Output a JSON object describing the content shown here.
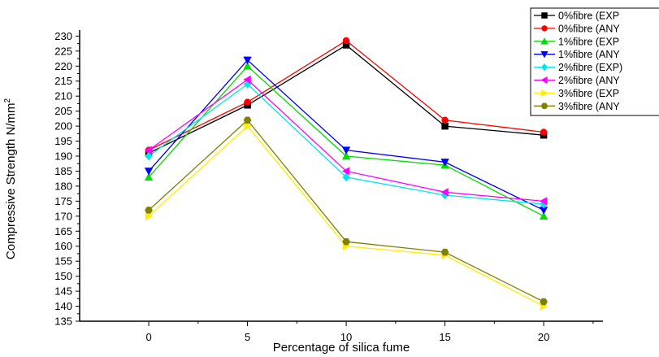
{
  "chart_data": {
    "type": "line",
    "xlabel": "Percentage of silica fume",
    "ylabel": "Compressive Strength N/mm",
    "ylabel_sup": "2",
    "x": [
      0,
      5,
      10,
      15,
      20
    ],
    "xlim": [
      -3.5,
      23
    ],
    "ylim": [
      135,
      232
    ],
    "yticks": [
      135,
      140,
      145,
      150,
      155,
      160,
      165,
      170,
      175,
      180,
      185,
      190,
      195,
      200,
      205,
      210,
      215,
      220,
      225,
      230
    ],
    "xticks": [
      0,
      5,
      10,
      15,
      20
    ],
    "grid": false,
    "legend_position": "top-right",
    "series": [
      {
        "name": "0%fibre (EXP",
        "color": "#000000",
        "marker": "square",
        "values": [
          191,
          207,
          227,
          200,
          197
        ]
      },
      {
        "name": "0%fibre (ANY",
        "color": "#ff0000",
        "marker": "circle",
        "values": [
          192,
          208,
          228.5,
          202,
          198
        ]
      },
      {
        "name": "1%fibre (EXP",
        "color": "#00dd00",
        "marker": "triangle-up",
        "values": [
          183,
          220,
          190,
          187,
          170
        ]
      },
      {
        "name": "1%fibre (ANY",
        "color": "#0000ff",
        "marker": "triangle-down",
        "values": [
          185,
          222,
          192,
          188,
          172
        ]
      },
      {
        "name": "2%fibre (EXP)",
        "color": "#00e5ee",
        "marker": "diamond",
        "values": [
          190,
          214,
          183,
          177,
          174
        ]
      },
      {
        "name": "2%fibre (ANY",
        "color": "#ff00ff",
        "marker": "triangle-left",
        "values": [
          192,
          215.5,
          185,
          178,
          175
        ]
      },
      {
        "name": "3%fibre (EXP",
        "color": "#ffee00",
        "marker": "triangle-right",
        "values": [
          170,
          200,
          160,
          157,
          140
        ]
      },
      {
        "name": "3%fibre (ANY",
        "color": "#808000",
        "marker": "hexagon",
        "values": [
          172,
          202,
          161.5,
          158,
          141.5
        ]
      }
    ]
  }
}
